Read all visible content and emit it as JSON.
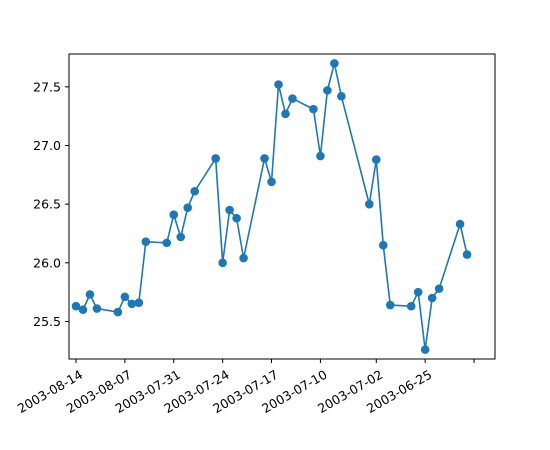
{
  "chart_data": {
    "type": "line",
    "title": "",
    "xlabel": "",
    "ylabel": "",
    "x_axis_inverted": true,
    "x_tick_labels": [
      "2003-08-14",
      "2003-08-07",
      "2003-07-31",
      "2003-07-24",
      "2003-07-17",
      "2003-07-10",
      "2003-07-02",
      "2003-06-25"
    ],
    "x_tick_dates": [
      "2003-08-14",
      "2003-08-07",
      "2003-07-31",
      "2003-07-24",
      "2003-07-17",
      "2003-07-10",
      "2003-07-02",
      "2003-06-25"
    ],
    "y_ticks": [
      25.5,
      26.0,
      26.5,
      27.0,
      27.5
    ],
    "y_tick_labels": [
      "25.5",
      "26.0",
      "26.5",
      "27.0",
      "27.5"
    ],
    "ylim": [
      25.18,
      27.78
    ],
    "xlim": [
      "2003-08-15",
      "2003-06-15"
    ],
    "grid": false,
    "series": [
      {
        "color": "#1f77b4",
        "marker": "circle",
        "points": [
          {
            "x": "2003-08-14",
            "y": 25.63
          },
          {
            "x": "2003-08-13",
            "y": 25.6
          },
          {
            "x": "2003-08-12",
            "y": 25.73
          },
          {
            "x": "2003-08-11",
            "y": 25.61
          },
          {
            "x": "2003-08-08",
            "y": 25.58
          },
          {
            "x": "2003-08-07",
            "y": 25.71
          },
          {
            "x": "2003-08-06",
            "y": 25.65
          },
          {
            "x": "2003-08-05",
            "y": 25.66
          },
          {
            "x": "2003-08-04",
            "y": 26.18
          },
          {
            "x": "2003-08-01",
            "y": 26.17
          },
          {
            "x": "2003-07-31",
            "y": 26.41
          },
          {
            "x": "2003-07-30",
            "y": 26.22
          },
          {
            "x": "2003-07-29",
            "y": 26.47
          },
          {
            "x": "2003-07-28",
            "y": 26.61
          },
          {
            "x": "2003-07-25",
            "y": 26.89
          },
          {
            "x": "2003-07-24",
            "y": 26.0
          },
          {
            "x": "2003-07-23",
            "y": 26.45
          },
          {
            "x": "2003-07-22",
            "y": 26.38
          },
          {
            "x": "2003-07-21",
            "y": 26.04
          },
          {
            "x": "2003-07-18",
            "y": 26.89
          },
          {
            "x": "2003-07-17",
            "y": 26.69
          },
          {
            "x": "2003-07-16",
            "y": 27.52
          },
          {
            "x": "2003-07-15",
            "y": 27.27
          },
          {
            "x": "2003-07-14",
            "y": 27.4
          },
          {
            "x": "2003-07-11",
            "y": 27.31
          },
          {
            "x": "2003-07-10",
            "y": 26.91
          },
          {
            "x": "2003-07-09",
            "y": 27.47
          },
          {
            "x": "2003-07-08",
            "y": 27.7
          },
          {
            "x": "2003-07-07",
            "y": 27.42
          },
          {
            "x": "2003-07-03",
            "y": 26.5
          },
          {
            "x": "2003-07-02",
            "y": 26.88
          },
          {
            "x": "2003-07-01",
            "y": 26.15
          },
          {
            "x": "2003-06-30",
            "y": 25.64
          },
          {
            "x": "2003-06-27",
            "y": 25.63
          },
          {
            "x": "2003-06-26",
            "y": 25.75
          },
          {
            "x": "2003-06-25",
            "y": 25.26
          },
          {
            "x": "2003-06-24",
            "y": 25.7
          },
          {
            "x": "2003-06-23",
            "y": 25.78
          },
          {
            "x": "2003-06-20",
            "y": 26.33
          },
          {
            "x": "2003-06-19",
            "y": 26.07
          }
        ]
      }
    ]
  }
}
